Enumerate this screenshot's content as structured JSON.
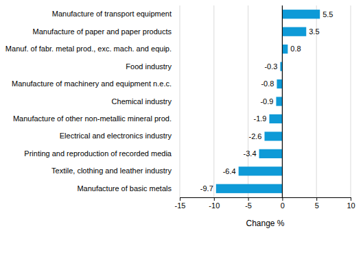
{
  "chart_data": {
    "type": "bar",
    "orientation": "horizontal",
    "categories": [
      "Manufacture of transport equipment",
      "Manufacture of paper and paper products",
      "Manuf. of fabr. metal prod., exc. mach. and equip.",
      "Food industry",
      "Manufacture of machinery and equipment n.e.c.",
      "Chemical industry",
      "Manufacture of other non-metallic mineral prod.",
      "Electrical and electronics industry",
      "Printing and reproduction of recorded media",
      "Textile, clothing and leather industry",
      "Manufacture of basic metals"
    ],
    "values": [
      5.5,
      3.5,
      0.8,
      -0.3,
      -0.8,
      -0.9,
      -1.9,
      -2.6,
      -3.4,
      -6.4,
      -9.7
    ],
    "color": "#0e9ad7",
    "x_label": "Change %",
    "xlim": [
      -15,
      10
    ],
    "xticks": [
      -15,
      -10,
      -5,
      0,
      5,
      10
    ],
    "grid": true,
    "data_labels": true
  }
}
